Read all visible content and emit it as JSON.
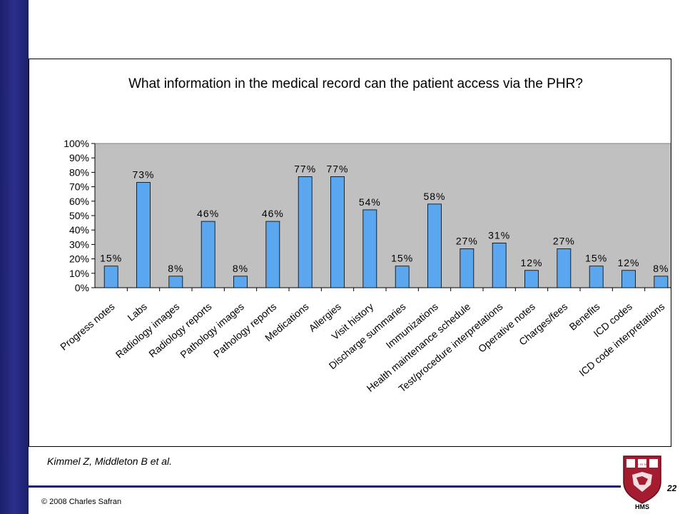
{
  "chart_data": {
    "type": "bar",
    "title": "What information in the medical record can the patient access via the PHR?",
    "xlabel": "",
    "ylabel": "",
    "ylim": [
      0,
      100
    ],
    "yticks": [
      "0%",
      "10%",
      "20%",
      "30%",
      "40%",
      "50%",
      "60%",
      "70%",
      "80%",
      "90%",
      "100%"
    ],
    "grid": false,
    "bar_color": "#5aa7f0",
    "plot_background": "#c0c0c0",
    "categories": [
      "Progress notes",
      "Labs",
      "Radiology images",
      "Radiology reports",
      "Pathology images",
      "Pathology reports",
      "Medications",
      "Allergies",
      "Visit history",
      "Discharge summaries",
      "Immunizations",
      "Health maintenance schedule",
      "Test/procedure interpretations",
      "Operative notes",
      "Charges/fees",
      "Benefits",
      "ICD codes",
      "ICD code interpretations"
    ],
    "values": [
      15,
      73,
      8,
      46,
      8,
      46,
      77,
      77,
      54,
      15,
      58,
      27,
      31,
      12,
      27,
      15,
      12,
      8
    ],
    "data_labels": [
      "15%",
      "73%",
      "8%",
      "46%",
      "8%",
      "46%",
      "77%",
      "77%",
      "54%",
      "15%",
      "58%",
      "27%",
      "31%",
      "12%",
      "27%",
      "15%",
      "12%",
      "8%"
    ]
  },
  "citation": "Kimmel Z, Middleton B et al.",
  "copyright": "© 2008 Charles Safran",
  "page_number": "22",
  "logo_text": "HMS",
  "logo_motto": "VE RI TAS",
  "colors": {
    "sidebar": "#1c1f6b",
    "logo_red": "#a51c30"
  }
}
